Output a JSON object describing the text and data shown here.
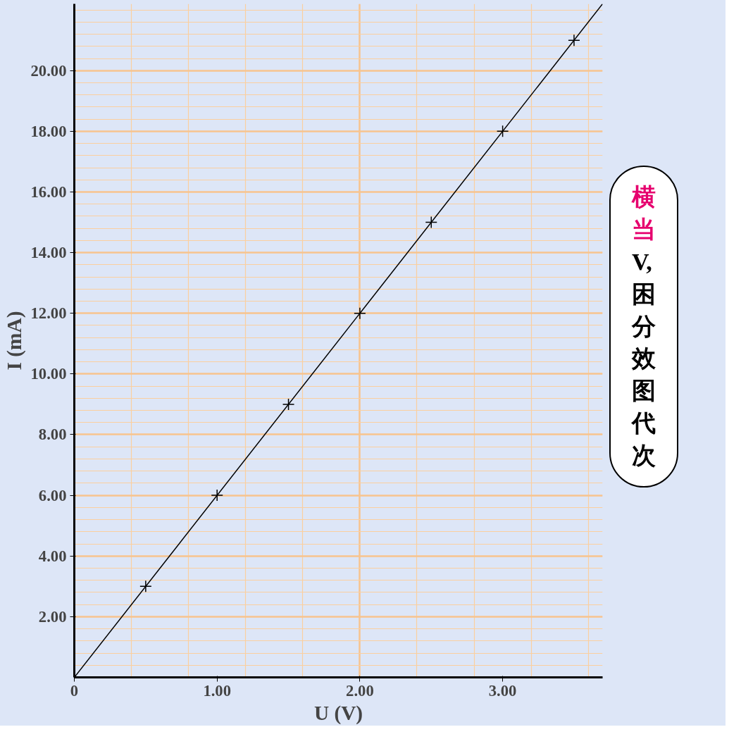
{
  "chart_data": {
    "type": "scatter",
    "xlabel": "U (V)",
    "ylabel": "I (mA)",
    "x": [
      0.5,
      1.0,
      1.5,
      2.0,
      2.5,
      3.0,
      3.5
    ],
    "series": [
      {
        "color": "#000000",
        "marker": "cross",
        "values": [
          3,
          6,
          9,
          12,
          15,
          18,
          21
        ]
      },
      {
        "type": "line",
        "color": "#000000",
        "x": [
          0,
          3.7
        ],
        "values": [
          0,
          22.2
        ]
      }
    ],
    "xlim": [
      0,
      3.7
    ],
    "ylim": [
      0,
      22.2
    ],
    "xticks": [
      {
        "value": 0,
        "label": "0"
      },
      {
        "value": 1,
        "label": "1.00"
      },
      {
        "value": 2,
        "label": "2.00"
      },
      {
        "value": 3,
        "label": "3.00"
      }
    ],
    "yticks": [
      {
        "value": 2,
        "label": "2.00"
      },
      {
        "value": 4,
        "label": "4.00"
      },
      {
        "value": 6,
        "label": "6.00"
      },
      {
        "value": 8,
        "label": "8.00"
      },
      {
        "value": 10,
        "label": "10.00"
      },
      {
        "value": 12,
        "label": "12.00"
      },
      {
        "value": 14,
        "label": "14.00"
      },
      {
        "value": 16,
        "label": "16.00"
      },
      {
        "value": 18,
        "label": "18.00"
      },
      {
        "value": 20,
        "label": "20.00"
      }
    ],
    "grid": true,
    "annotations": [
      "横",
      "当",
      "V,",
      "困",
      "分",
      "效",
      "图",
      "代",
      "次"
    ]
  }
}
